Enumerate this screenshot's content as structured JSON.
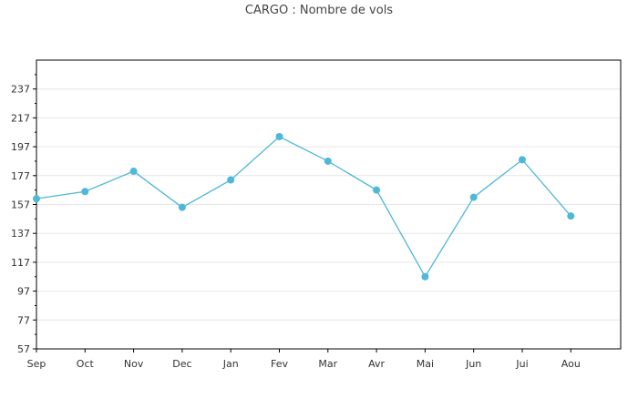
{
  "chart_data": {
    "type": "line",
    "title": "CARGO : Nombre de vols",
    "xlabel": "",
    "ylabel": "",
    "categories": [
      "Sep",
      "Oct",
      "Nov",
      "Dec",
      "Jan",
      "Fev",
      "Mar",
      "Avr",
      "Mai",
      "Jun",
      "Jui",
      "Aou"
    ],
    "series": [
      {
        "values": [
          161,
          166,
          180,
          155,
          174,
          204,
          187,
          167,
          107,
          162,
          188,
          149
        ]
      }
    ],
    "ylim": [
      57,
      257
    ],
    "yticks": [
      57,
      77,
      97,
      117,
      137,
      157,
      177,
      197,
      217,
      237
    ],
    "grid": true,
    "colors": {
      "line": "#4db8d8",
      "marker": "#4db8d8",
      "grid": "#e6e6e6",
      "axis": "#000000"
    }
  }
}
